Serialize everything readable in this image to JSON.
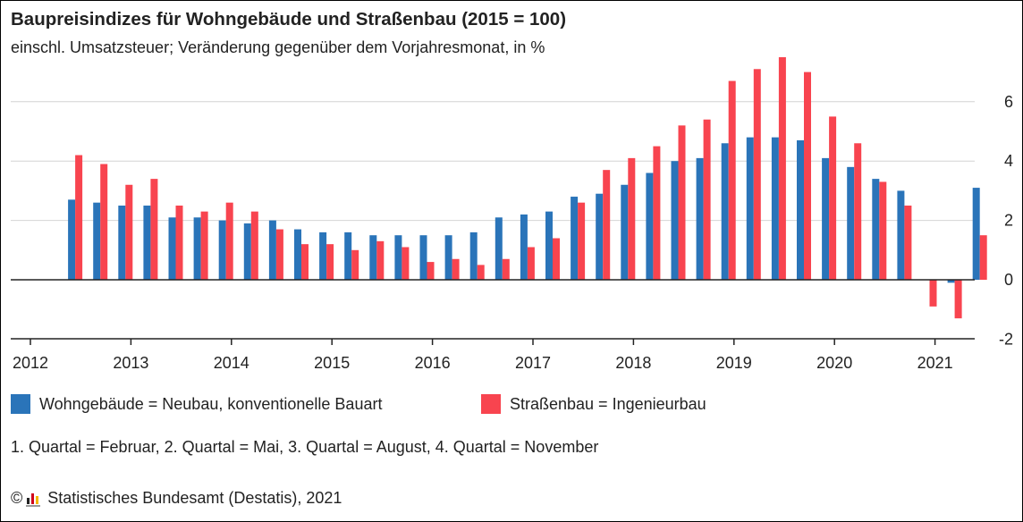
{
  "title": "Baupreisindizes für Wohngebäude und Straßenbau (2015 = 100)",
  "subtitle": "einschl. Umsatzsteuer; Veränderung gegenüber dem Vorjahresmonat, in %",
  "legend": {
    "series1": "Wohngebäude = Neubau, konventionelle Bauart",
    "series2": "Straßenbau = Ingenieurbau"
  },
  "note": "1. Quartal = Februar, 2. Quartal = Mai, 3. Quartal = August, 4. Quartal = November",
  "source": {
    "copyright_symbol": "©",
    "logo_icon": "destatis-logo-icon",
    "text": "Statistisches Bundesamt (Destatis), 2021"
  },
  "colors": {
    "series1": "#2a74b9",
    "series2": "#f8444f",
    "grid": "#d4d4d4",
    "axis": "#222222"
  },
  "chart_data": {
    "type": "bar",
    "title": "Baupreisindizes für Wohngebäude und Straßenbau (2015 = 100)",
    "subtitle": "einschl. Umsatzsteuer; Veränderung gegenüber dem Vorjahresmonat, in %",
    "x_tick_labels": [
      "2012",
      "2013",
      "2014",
      "2015",
      "2016",
      "2017",
      "2018",
      "2019",
      "2020",
      "2021"
    ],
    "categories": [
      "2012 Q2",
      "2012 Q3",
      "2012 Q4",
      "2013 Q1",
      "2013 Q2",
      "2013 Q3",
      "2013 Q4",
      "2014 Q1",
      "2014 Q2",
      "2014 Q3",
      "2014 Q4",
      "2015 Q1",
      "2015 Q2",
      "2015 Q3",
      "2015 Q4",
      "2016 Q1",
      "2016 Q2",
      "2016 Q3",
      "2016 Q4",
      "2017 Q1",
      "2017 Q2",
      "2017 Q3",
      "2017 Q4",
      "2018 Q1",
      "2018 Q2",
      "2018 Q3",
      "2018 Q4",
      "2019 Q1",
      "2019 Q2",
      "2019 Q3",
      "2019 Q4",
      "2020 Q1",
      "2020 Q2",
      "2020 Q3",
      "2020 Q4",
      "2021 Q1",
      "2021 Q2"
    ],
    "series": [
      {
        "name": "Wohngebäude = Neubau, konventionelle Bauart",
        "values": [
          2.7,
          2.6,
          2.5,
          2.5,
          2.1,
          2.1,
          2.0,
          1.9,
          2.0,
          1.7,
          1.6,
          1.6,
          1.5,
          1.5,
          1.5,
          1.5,
          1.6,
          2.1,
          2.2,
          2.3,
          2.8,
          2.9,
          3.2,
          3.6,
          4.0,
          4.1,
          4.6,
          4.8,
          4.8,
          4.7,
          4.1,
          3.8,
          3.4,
          3.0,
          0.0,
          -0.1,
          3.1
        ]
      },
      {
        "name": "Straßenbau = Ingenieurbau",
        "values": [
          4.2,
          3.9,
          3.2,
          3.4,
          2.5,
          2.3,
          2.6,
          2.3,
          1.7,
          1.2,
          1.2,
          1.0,
          1.3,
          1.1,
          0.6,
          0.7,
          0.5,
          0.7,
          1.1,
          1.4,
          2.6,
          3.7,
          4.1,
          4.5,
          5.2,
          5.4,
          6.7,
          7.1,
          7.5,
          7.0,
          5.5,
          4.6,
          3.3,
          2.5,
          -0.9,
          -1.3,
          1.5
        ]
      }
    ],
    "y_ticks": [
      -2,
      0,
      2,
      4,
      6
    ],
    "ylim": [
      -2,
      7.5
    ],
    "grid": true,
    "legend_position": "bottom-left"
  }
}
